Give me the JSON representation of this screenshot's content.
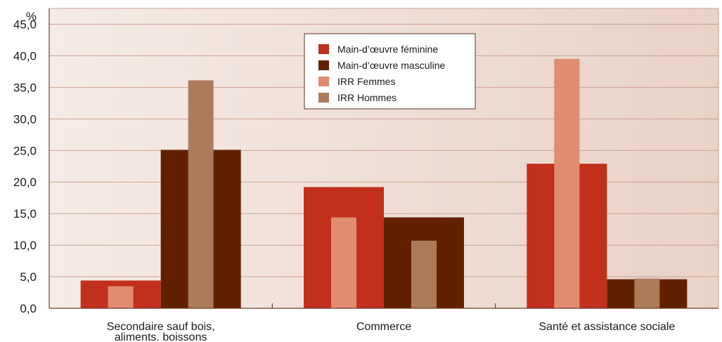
{
  "chart_data": {
    "type": "bar",
    "ylabel": "%",
    "ylim": [
      0,
      47.5
    ],
    "yticks": [
      "0,0",
      "5,0",
      "10,0",
      "15,0",
      "20,0",
      "25,0",
      "30,0",
      "35,0",
      "40,0",
      "45,0"
    ],
    "categories": [
      [
        "Secondaire sauf bois,",
        "aliments. boissons"
      ],
      [
        "Commerce"
      ],
      [
        "Santé et assistance sociale"
      ]
    ],
    "series": [
      {
        "name": "Main-d’œuvre féminine",
        "color": "#c0301c",
        "values": [
          4.4,
          19.2,
          22.9
        ],
        "kind": "wide",
        "slot": 0
      },
      {
        "name": "Main-d’œuvre masculine",
        "color": "#612100",
        "values": [
          25.1,
          14.4,
          4.6
        ],
        "kind": "wide",
        "slot": 1
      },
      {
        "name": "IRR Femmes",
        "color": "#df8c70",
        "values": [
          3.5,
          14.4,
          39.5
        ],
        "kind": "narrow",
        "slot": 0
      },
      {
        "name": "IRR Hommes",
        "color": "#ac7b5c",
        "values": [
          36.1,
          10.7,
          4.7
        ],
        "kind": "narrow",
        "slot": 1
      }
    ],
    "grid": true,
    "legend_position": "top-center"
  }
}
